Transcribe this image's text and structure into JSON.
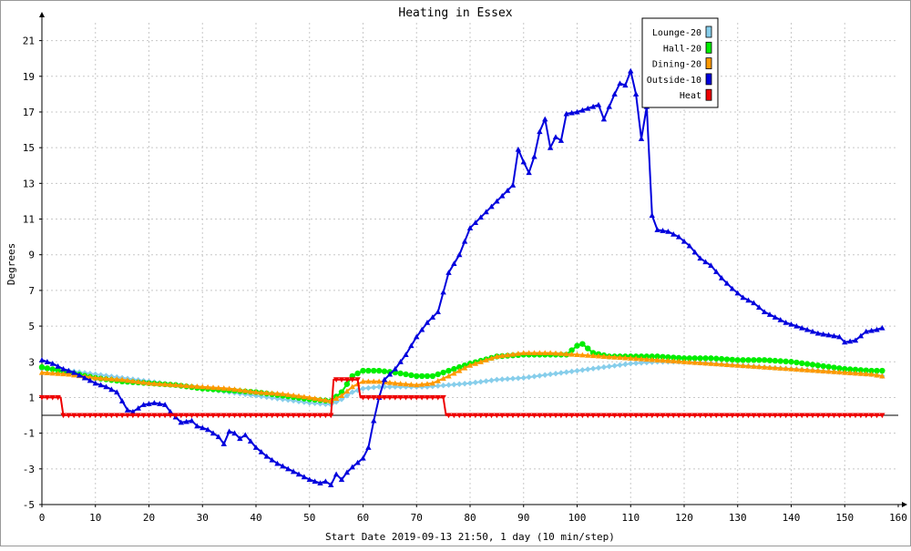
{
  "chart_data": {
    "type": "line",
    "title": "Heating in Essex",
    "xlabel": "Start Date 2019-09-13 21:50, 1 day (10 min/step)",
    "ylabel": "Degrees",
    "xlim": [
      0,
      160
    ],
    "ylim": [
      -5,
      22
    ],
    "xticks": [
      0,
      10,
      20,
      30,
      40,
      50,
      60,
      70,
      80,
      90,
      100,
      110,
      120,
      130,
      140,
      150,
      160
    ],
    "yticks": [
      -5,
      -3,
      -1,
      1,
      3,
      5,
      7,
      9,
      11,
      13,
      15,
      17,
      19,
      21
    ],
    "grid": true,
    "legend_position": "top-right",
    "series": [
      {
        "name": "Lounge-20",
        "color": "#87ceeb",
        "marker": "diamond",
        "points": [
          [
            0,
            2.6
          ],
          [
            5,
            2.5
          ],
          [
            10,
            2.3
          ],
          [
            15,
            2.1
          ],
          [
            20,
            1.9
          ],
          [
            25,
            1.7
          ],
          [
            30,
            1.5
          ],
          [
            35,
            1.3
          ],
          [
            40,
            1.1
          ],
          [
            45,
            0.9
          ],
          [
            50,
            0.7
          ],
          [
            54,
            0.6
          ],
          [
            56,
            0.9
          ],
          [
            58,
            1.3
          ],
          [
            60,
            1.5
          ],
          [
            63,
            1.6
          ],
          [
            68,
            1.6
          ],
          [
            72,
            1.6
          ],
          [
            76,
            1.7
          ],
          [
            80,
            1.8
          ],
          [
            85,
            2.0
          ],
          [
            90,
            2.1
          ],
          [
            95,
            2.3
          ],
          [
            100,
            2.5
          ],
          [
            105,
            2.7
          ],
          [
            110,
            2.9
          ],
          [
            115,
            3.0
          ],
          [
            120,
            3.0
          ],
          [
            125,
            2.9
          ],
          [
            130,
            2.8
          ],
          [
            135,
            2.7
          ],
          [
            140,
            2.6
          ],
          [
            145,
            2.5
          ],
          [
            150,
            2.4
          ],
          [
            155,
            2.3
          ],
          [
            157,
            2.2
          ]
        ]
      },
      {
        "name": "Hall-20",
        "color": "#00ee00",
        "marker": "circle",
        "points": [
          [
            0,
            2.7
          ],
          [
            5,
            2.4
          ],
          [
            10,
            2.1
          ],
          [
            15,
            1.9
          ],
          [
            20,
            1.8
          ],
          [
            25,
            1.7
          ],
          [
            30,
            1.5
          ],
          [
            35,
            1.4
          ],
          [
            40,
            1.3
          ],
          [
            45,
            1.1
          ],
          [
            50,
            0.9
          ],
          [
            54,
            0.8
          ],
          [
            56,
            1.3
          ],
          [
            58,
            2.2
          ],
          [
            60,
            2.5
          ],
          [
            63,
            2.5
          ],
          [
            66,
            2.4
          ],
          [
            70,
            2.2
          ],
          [
            73,
            2.2
          ],
          [
            76,
            2.5
          ],
          [
            80,
            2.9
          ],
          [
            85,
            3.3
          ],
          [
            90,
            3.4
          ],
          [
            95,
            3.4
          ],
          [
            98,
            3.4
          ],
          [
            100,
            3.9
          ],
          [
            101,
            4.0
          ],
          [
            103,
            3.5
          ],
          [
            106,
            3.3
          ],
          [
            110,
            3.3
          ],
          [
            115,
            3.3
          ],
          [
            120,
            3.2
          ],
          [
            125,
            3.2
          ],
          [
            130,
            3.1
          ],
          [
            135,
            3.1
          ],
          [
            140,
            3.0
          ],
          [
            145,
            2.8
          ],
          [
            150,
            2.6
          ],
          [
            155,
            2.5
          ],
          [
            157,
            2.5
          ]
        ]
      },
      {
        "name": "Dining-20",
        "color": "#ff9900",
        "marker": "triangle-up",
        "points": [
          [
            0,
            2.4
          ],
          [
            5,
            2.3
          ],
          [
            10,
            2.1
          ],
          [
            15,
            2.0
          ],
          [
            20,
            1.8
          ],
          [
            25,
            1.7
          ],
          [
            30,
            1.6
          ],
          [
            35,
            1.5
          ],
          [
            40,
            1.3
          ],
          [
            45,
            1.2
          ],
          [
            50,
            1.0
          ],
          [
            54,
            0.8
          ],
          [
            56,
            1.1
          ],
          [
            58,
            1.6
          ],
          [
            60,
            1.9
          ],
          [
            63,
            1.9
          ],
          [
            66,
            1.8
          ],
          [
            70,
            1.7
          ],
          [
            73,
            1.8
          ],
          [
            76,
            2.2
          ],
          [
            80,
            2.8
          ],
          [
            85,
            3.3
          ],
          [
            90,
            3.5
          ],
          [
            95,
            3.5
          ],
          [
            100,
            3.4
          ],
          [
            105,
            3.3
          ],
          [
            110,
            3.2
          ],
          [
            115,
            3.1
          ],
          [
            120,
            3.0
          ],
          [
            125,
            2.9
          ],
          [
            130,
            2.8
          ],
          [
            135,
            2.7
          ],
          [
            140,
            2.6
          ],
          [
            145,
            2.5
          ],
          [
            150,
            2.4
          ],
          [
            155,
            2.3
          ],
          [
            157,
            2.2
          ]
        ]
      },
      {
        "name": "Outside-10",
        "color": "#0000dd",
        "marker": "triangle-up",
        "points": [
          [
            0,
            3.1
          ],
          [
            2,
            2.9
          ],
          [
            4,
            2.6
          ],
          [
            6,
            2.4
          ],
          [
            8,
            2.1
          ],
          [
            10,
            1.8
          ],
          [
            12,
            1.6
          ],
          [
            14,
            1.3
          ],
          [
            16,
            0.3
          ],
          [
            17,
            0.2
          ],
          [
            18,
            0.4
          ],
          [
            19,
            0.6
          ],
          [
            21,
            0.7
          ],
          [
            23,
            0.6
          ],
          [
            24,
            0.2
          ],
          [
            26,
            -0.4
          ],
          [
            28,
            -0.3
          ],
          [
            29,
            -0.6
          ],
          [
            31,
            -0.8
          ],
          [
            33,
            -1.2
          ],
          [
            34,
            -1.6
          ],
          [
            35,
            -0.9
          ],
          [
            36,
            -1.0
          ],
          [
            37,
            -1.3
          ],
          [
            38,
            -1.1
          ],
          [
            40,
            -1.8
          ],
          [
            42,
            -2.3
          ],
          [
            44,
            -2.7
          ],
          [
            46,
            -3.0
          ],
          [
            48,
            -3.3
          ],
          [
            50,
            -3.6
          ],
          [
            52,
            -3.8
          ],
          [
            53,
            -3.7
          ],
          [
            54,
            -3.9
          ],
          [
            55,
            -3.3
          ],
          [
            56,
            -3.6
          ],
          [
            57,
            -3.2
          ],
          [
            58,
            -2.9
          ],
          [
            60,
            -2.4
          ],
          [
            61,
            -1.8
          ],
          [
            62,
            -0.3
          ],
          [
            63,
            1.0
          ],
          [
            64,
            2.0
          ],
          [
            66,
            2.6
          ],
          [
            68,
            3.4
          ],
          [
            70,
            4.4
          ],
          [
            72,
            5.2
          ],
          [
            74,
            5.8
          ],
          [
            76,
            8.0
          ],
          [
            78,
            9.0
          ],
          [
            80,
            10.5
          ],
          [
            82,
            11.1
          ],
          [
            84,
            11.7
          ],
          [
            86,
            12.3
          ],
          [
            88,
            12.9
          ],
          [
            89,
            14.9
          ],
          [
            90,
            14.2
          ],
          [
            91,
            13.6
          ],
          [
            92,
            14.5
          ],
          [
            93,
            15.9
          ],
          [
            94,
            16.6
          ],
          [
            95,
            15.0
          ],
          [
            96,
            15.6
          ],
          [
            97,
            15.4
          ],
          [
            98,
            16.9
          ],
          [
            100,
            17.0
          ],
          [
            102,
            17.2
          ],
          [
            104,
            17.4
          ],
          [
            105,
            16.6
          ],
          [
            107,
            18.0
          ],
          [
            108,
            18.6
          ],
          [
            109,
            18.5
          ],
          [
            110,
            19.3
          ],
          [
            111,
            18.0
          ],
          [
            112,
            15.5
          ],
          [
            113,
            17.3
          ],
          [
            114,
            11.2
          ],
          [
            115,
            10.4
          ],
          [
            117,
            10.3
          ],
          [
            119,
            10.0
          ],
          [
            121,
            9.5
          ],
          [
            123,
            8.8
          ],
          [
            125,
            8.4
          ],
          [
            127,
            7.7
          ],
          [
            129,
            7.1
          ],
          [
            131,
            6.6
          ],
          [
            133,
            6.3
          ],
          [
            135,
            5.8
          ],
          [
            137,
            5.5
          ],
          [
            139,
            5.2
          ],
          [
            141,
            5.0
          ],
          [
            143,
            4.8
          ],
          [
            145,
            4.6
          ],
          [
            147,
            4.5
          ],
          [
            149,
            4.4
          ],
          [
            150,
            4.1
          ],
          [
            152,
            4.2
          ],
          [
            154,
            4.7
          ],
          [
            156,
            4.8
          ],
          [
            157,
            4.9
          ]
        ]
      },
      {
        "name": "Heat",
        "color": "#ee0000",
        "marker": "triangle-down",
        "points": [
          [
            0,
            1.0
          ],
          [
            3.5,
            1.0
          ],
          [
            4,
            0.0
          ],
          [
            54,
            0.0
          ],
          [
            54.5,
            2.0
          ],
          [
            59,
            2.0
          ],
          [
            59.5,
            1.0
          ],
          [
            75,
            1.0
          ],
          [
            75.5,
            0.0
          ],
          [
            157,
            0.0
          ]
        ]
      }
    ]
  }
}
